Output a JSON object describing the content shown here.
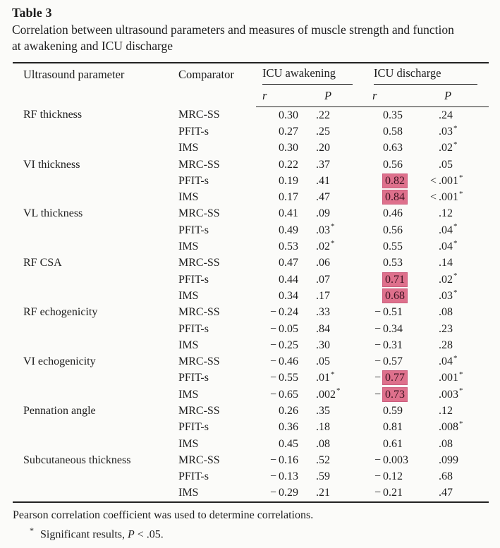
{
  "table": {
    "label": "Table 3",
    "caption_lines": [
      "Correlation between ultrasound parameters and measures of muscle strength and function",
      "at awakening and ICU discharge"
    ],
    "columns": {
      "parameter": "Ultrasound parameter",
      "comparator": "Comparator",
      "group_awakening": "ICU awakening",
      "group_discharge": "ICU discharge",
      "sub_r": "r",
      "sub_p": "P"
    },
    "highlight_color": "#de708c",
    "rows": [
      {
        "parameter": "RF thickness",
        "comparator": "MRC-SS",
        "awakening_r": "0.30",
        "awakening_p": ".22",
        "discharge_r": "0.35",
        "discharge_p": ".24"
      },
      {
        "parameter": "",
        "comparator": "PFIT-s",
        "awakening_r": "0.27",
        "awakening_p": ".25",
        "discharge_r": "0.58",
        "discharge_p": ".03*"
      },
      {
        "parameter": "",
        "comparator": "IMS",
        "awakening_r": "0.30",
        "awakening_p": ".20",
        "discharge_r": "0.63",
        "discharge_p": ".02*"
      },
      {
        "parameter": "VI thickness",
        "comparator": "MRC-SS",
        "awakening_r": "0.22",
        "awakening_p": ".37",
        "discharge_r": "0.56",
        "discharge_p": ".05"
      },
      {
        "parameter": "",
        "comparator": "PFIT-s",
        "awakening_r": "0.19",
        "awakening_p": ".41",
        "discharge_r": "0.82",
        "discharge_r_highlight": true,
        "discharge_p": "<.001*"
      },
      {
        "parameter": "",
        "comparator": "IMS",
        "awakening_r": "0.17",
        "awakening_p": ".47",
        "discharge_r": "0.84",
        "discharge_r_highlight": true,
        "discharge_p": "<.001*"
      },
      {
        "parameter": "VL thickness",
        "comparator": "MRC-SS",
        "awakening_r": "0.41",
        "awakening_p": ".09",
        "discharge_r": "0.46",
        "discharge_p": ".12"
      },
      {
        "parameter": "",
        "comparator": "PFIT-s",
        "awakening_r": "0.49",
        "awakening_p": ".03*",
        "discharge_r": "0.56",
        "discharge_p": ".04*"
      },
      {
        "parameter": "",
        "comparator": "IMS",
        "awakening_r": "0.53",
        "awakening_p": ".02*",
        "discharge_r": "0.55",
        "discharge_p": ".04*"
      },
      {
        "parameter": "RF CSA",
        "comparator": "MRC-SS",
        "awakening_r": "0.47",
        "awakening_p": ".06",
        "discharge_r": "0.53",
        "discharge_p": ".14"
      },
      {
        "parameter": "",
        "comparator": "PFIT-s",
        "awakening_r": "0.44",
        "awakening_p": ".07",
        "discharge_r": "0.71",
        "discharge_r_highlight": true,
        "discharge_p": ".02*"
      },
      {
        "parameter": "",
        "comparator": "IMS",
        "awakening_r": "0.34",
        "awakening_p": ".17",
        "discharge_r": "0.68",
        "discharge_r_highlight": true,
        "discharge_p": ".03*"
      },
      {
        "parameter": "RF echogenicity",
        "comparator": "MRC-SS",
        "awakening_r": "−0.24",
        "awakening_p": ".33",
        "discharge_r": "−0.51",
        "discharge_p": ".08"
      },
      {
        "parameter": "",
        "comparator": "PFIT-s",
        "awakening_r": "−0.05",
        "awakening_p": ".84",
        "discharge_r": "−0.34",
        "discharge_p": ".23"
      },
      {
        "parameter": "",
        "comparator": "IMS",
        "awakening_r": "−0.25",
        "awakening_p": ".30",
        "discharge_r": "−0.31",
        "discharge_p": ".28"
      },
      {
        "parameter": "VI echogenicity",
        "comparator": "MRC-SS",
        "awakening_r": "−0.46",
        "awakening_p": ".05",
        "discharge_r": "−0.57",
        "discharge_p": ".04*"
      },
      {
        "parameter": "",
        "comparator": "PFIT-s",
        "awakening_r": "−0.55",
        "awakening_p": ".01*",
        "discharge_r": "−0.77",
        "discharge_r_highlight": true,
        "discharge_p": ".001*"
      },
      {
        "parameter": "",
        "comparator": "IMS",
        "awakening_r": "−0.65",
        "awakening_p": ".002*",
        "discharge_r": "−0.73",
        "discharge_r_highlight": true,
        "discharge_p": ".003*"
      },
      {
        "parameter": "Pennation angle",
        "comparator": "MRC-SS",
        "awakening_r": "0.26",
        "awakening_p": ".35",
        "discharge_r": "0.59",
        "discharge_p": ".12"
      },
      {
        "parameter": "",
        "comparator": "PFIT-s",
        "awakening_r": "0.36",
        "awakening_p": ".18",
        "discharge_r": "0.81",
        "discharge_p": ".008*"
      },
      {
        "parameter": "",
        "comparator": "IMS",
        "awakening_r": "0.45",
        "awakening_p": ".08",
        "discharge_r": "0.61",
        "discharge_p": ".08"
      },
      {
        "parameter": "Subcutaneous thickness",
        "comparator": "MRC-SS",
        "awakening_r": "−0.16",
        "awakening_p": ".52",
        "discharge_r": "−0.003",
        "discharge_p": ".099"
      },
      {
        "parameter": "",
        "comparator": "PFIT-s",
        "awakening_r": "−0.13",
        "awakening_p": ".59",
        "discharge_r": "−0.12",
        "discharge_p": ".68"
      },
      {
        "parameter": "",
        "comparator": "IMS",
        "awakening_r": "−0.29",
        "awakening_p": ".21",
        "discharge_r": "−0.21",
        "discharge_p": ".47"
      }
    ],
    "footnotes": {
      "method": "Pearson correlation coefficient was used to determine correlations.",
      "significance_marker": "*",
      "significance_before": "Significant results, ",
      "significance_italic": "P",
      "significance_after": " < .05."
    }
  }
}
